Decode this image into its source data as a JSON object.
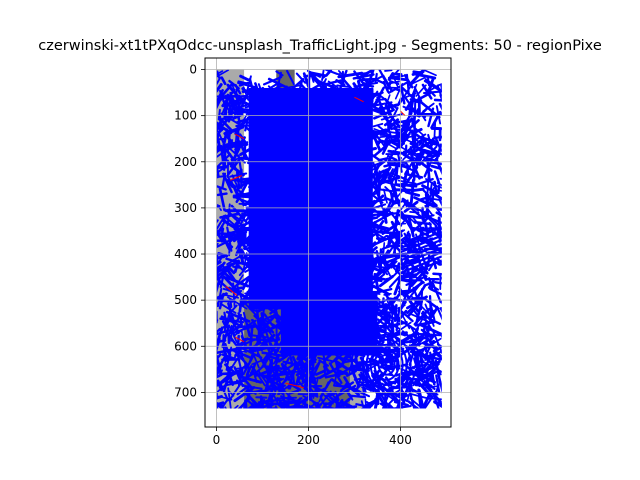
{
  "chart_data": {
    "type": "image",
    "title": "czerwinski-xt1tPXqOdcc-unsplash_TrafficLight.jpg - Segments: 50 - regionPixe",
    "xlabel": "",
    "ylabel": "",
    "xlim": [
      -25,
      510
    ],
    "ylim": [
      775,
      -25
    ],
    "x_ticks": [
      0,
      200,
      400
    ],
    "y_ticks": [
      0,
      100,
      200,
      300,
      400,
      500,
      600,
      700
    ],
    "grid": true,
    "image_extent": {
      "x": [
        0,
        490
      ],
      "y": [
        0,
        735
      ]
    },
    "overlay_colors": {
      "stroke": "#0000ff",
      "boundary": "#ff0000",
      "light": "#aaaaaa",
      "dark": "#666666"
    }
  }
}
